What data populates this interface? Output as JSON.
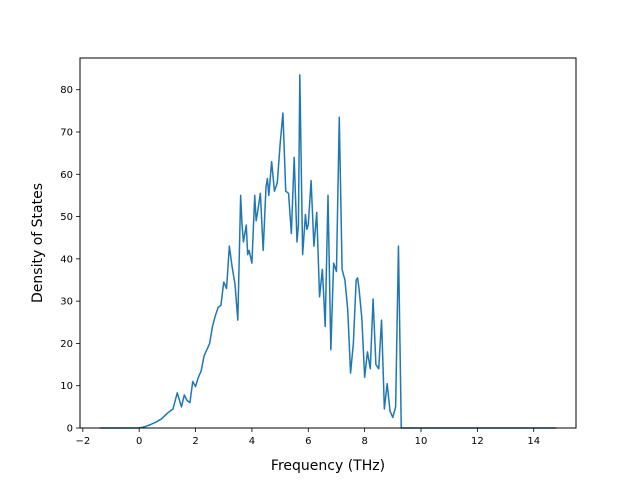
{
  "chart_data": {
    "type": "line",
    "title": "",
    "xlabel": "Frequency (THz)",
    "ylabel": "Density of States",
    "xlim": [
      -2.1,
      15.5
    ],
    "ylim": [
      0,
      87.5
    ],
    "xticks": [
      -2,
      0,
      2,
      4,
      6,
      8,
      10,
      12,
      14
    ],
    "yticks": [
      0,
      10,
      20,
      30,
      40,
      50,
      60,
      70,
      80
    ],
    "grid": false,
    "legend": "none",
    "line_color": "#1f77b4",
    "series": [
      {
        "x": [
          -1.4,
          -1.0,
          -0.5,
          0.0,
          0.2,
          0.4,
          0.6,
          0.8,
          1.0,
          1.2,
          1.35,
          1.5,
          1.6,
          1.7,
          1.8,
          1.9,
          2.0,
          2.1,
          2.2,
          2.3,
          2.4,
          2.5,
          2.6,
          2.7,
          2.8,
          2.9,
          3.0,
          3.1,
          3.2,
          3.3,
          3.4,
          3.5,
          3.6,
          3.65,
          3.7,
          3.8,
          3.85,
          3.9,
          4.0,
          4.1,
          4.15,
          4.2,
          4.3,
          4.4,
          4.5,
          4.55,
          4.6,
          4.7,
          4.8,
          4.9,
          5.0,
          5.1,
          5.2,
          5.3,
          5.4,
          5.5,
          5.6,
          5.65,
          5.7,
          5.8,
          5.9,
          5.95,
          6.0,
          6.1,
          6.2,
          6.3,
          6.4,
          6.5,
          6.55,
          6.6,
          6.7,
          6.8,
          6.9,
          7.0,
          7.1,
          7.2,
          7.3,
          7.4,
          7.5,
          7.6,
          7.7,
          7.75,
          7.8,
          7.9,
          8.0,
          8.1,
          8.2,
          8.3,
          8.4,
          8.5,
          8.6,
          8.7,
          8.8,
          8.9,
          9.0,
          9.1,
          9.2,
          9.3,
          9.4,
          9.5,
          9.55,
          9.6,
          9.8,
          10.0,
          12.0,
          14.0,
          14.8
        ],
        "y": [
          0,
          0,
          0,
          0,
          0.3,
          0.8,
          1.4,
          2.2,
          3.5,
          4.5,
          8.3,
          5.0,
          7.8,
          6.5,
          6.0,
          11.0,
          9.8,
          12.0,
          13.5,
          17.0,
          18.5,
          20.0,
          24.0,
          26.5,
          28.5,
          29.0,
          34.5,
          33.0,
          43.0,
          38.0,
          34.0,
          25.5,
          55.0,
          48.0,
          44.0,
          48.0,
          41.0,
          42.0,
          39.0,
          55.0,
          49.0,
          51.0,
          55.5,
          42.0,
          57.0,
          59.0,
          55.0,
          63.0,
          56.0,
          58.0,
          67.0,
          74.5,
          56.0,
          55.5,
          46.0,
          64.0,
          44.0,
          48.0,
          83.5,
          41.0,
          50.5,
          47.0,
          48.0,
          58.5,
          43.0,
          51.0,
          31.0,
          37.5,
          31.0,
          24.0,
          55.0,
          18.5,
          39.0,
          37.0,
          73.5,
          37.5,
          35.0,
          28.0,
          13.0,
          20.0,
          35.0,
          35.5,
          33.0,
          26.0,
          12.0,
          18.0,
          14.0,
          30.5,
          15.0,
          14.0,
          25.5,
          4.5,
          10.5,
          4.0,
          2.5,
          5.0,
          43.0,
          0,
          0,
          0,
          0,
          0,
          0,
          0,
          0,
          0,
          0
        ]
      }
    ]
  }
}
